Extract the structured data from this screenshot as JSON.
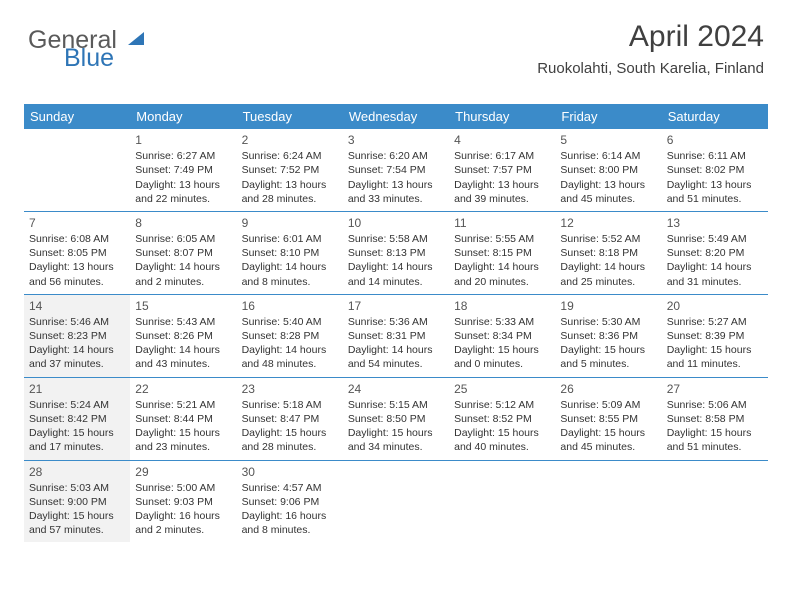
{
  "logo": {
    "part1": "General",
    "part2": "Blue"
  },
  "title": "April 2024",
  "location": "Ruokolahti, South Karelia, Finland",
  "colors": {
    "header_bg": "#3b8bc9",
    "header_text": "#ffffff",
    "rule": "#3b8bc9",
    "logo_gray": "#5a5a5a",
    "logo_blue": "#2e75b6",
    "shaded_bg": "#f2f2f2",
    "body_text": "#333333"
  },
  "font": {
    "family": "Arial",
    "title_size_pt": 30,
    "location_size_pt": 15,
    "header_size_pt": 13,
    "cell_size_pt": 10.5
  },
  "weekdays": [
    "Sunday",
    "Monday",
    "Tuesday",
    "Wednesday",
    "Thursday",
    "Friday",
    "Saturday"
  ],
  "weeks": [
    [
      {
        "empty": true
      },
      {
        "num": "1",
        "sunrise": "Sunrise: 6:27 AM",
        "sunset": "Sunset: 7:49 PM",
        "dl1": "Daylight: 13 hours",
        "dl2": "and 22 minutes."
      },
      {
        "num": "2",
        "sunrise": "Sunrise: 6:24 AM",
        "sunset": "Sunset: 7:52 PM",
        "dl1": "Daylight: 13 hours",
        "dl2": "and 28 minutes."
      },
      {
        "num": "3",
        "sunrise": "Sunrise: 6:20 AM",
        "sunset": "Sunset: 7:54 PM",
        "dl1": "Daylight: 13 hours",
        "dl2": "and 33 minutes."
      },
      {
        "num": "4",
        "sunrise": "Sunrise: 6:17 AM",
        "sunset": "Sunset: 7:57 PM",
        "dl1": "Daylight: 13 hours",
        "dl2": "and 39 minutes."
      },
      {
        "num": "5",
        "sunrise": "Sunrise: 6:14 AM",
        "sunset": "Sunset: 8:00 PM",
        "dl1": "Daylight: 13 hours",
        "dl2": "and 45 minutes."
      },
      {
        "num": "6",
        "sunrise": "Sunrise: 6:11 AM",
        "sunset": "Sunset: 8:02 PM",
        "dl1": "Daylight: 13 hours",
        "dl2": "and 51 minutes."
      }
    ],
    [
      {
        "num": "7",
        "sunrise": "Sunrise: 6:08 AM",
        "sunset": "Sunset: 8:05 PM",
        "dl1": "Daylight: 13 hours",
        "dl2": "and 56 minutes."
      },
      {
        "num": "8",
        "sunrise": "Sunrise: 6:05 AM",
        "sunset": "Sunset: 8:07 PM",
        "dl1": "Daylight: 14 hours",
        "dl2": "and 2 minutes."
      },
      {
        "num": "9",
        "sunrise": "Sunrise: 6:01 AM",
        "sunset": "Sunset: 8:10 PM",
        "dl1": "Daylight: 14 hours",
        "dl2": "and 8 minutes."
      },
      {
        "num": "10",
        "sunrise": "Sunrise: 5:58 AM",
        "sunset": "Sunset: 8:13 PM",
        "dl1": "Daylight: 14 hours",
        "dl2": "and 14 minutes."
      },
      {
        "num": "11",
        "sunrise": "Sunrise: 5:55 AM",
        "sunset": "Sunset: 8:15 PM",
        "dl1": "Daylight: 14 hours",
        "dl2": "and 20 minutes."
      },
      {
        "num": "12",
        "sunrise": "Sunrise: 5:52 AM",
        "sunset": "Sunset: 8:18 PM",
        "dl1": "Daylight: 14 hours",
        "dl2": "and 25 minutes."
      },
      {
        "num": "13",
        "sunrise": "Sunrise: 5:49 AM",
        "sunset": "Sunset: 8:20 PM",
        "dl1": "Daylight: 14 hours",
        "dl2": "and 31 minutes."
      }
    ],
    [
      {
        "num": "14",
        "shaded": true,
        "sunrise": "Sunrise: 5:46 AM",
        "sunset": "Sunset: 8:23 PM",
        "dl1": "Daylight: 14 hours",
        "dl2": "and 37 minutes."
      },
      {
        "num": "15",
        "sunrise": "Sunrise: 5:43 AM",
        "sunset": "Sunset: 8:26 PM",
        "dl1": "Daylight: 14 hours",
        "dl2": "and 43 minutes."
      },
      {
        "num": "16",
        "sunrise": "Sunrise: 5:40 AM",
        "sunset": "Sunset: 8:28 PM",
        "dl1": "Daylight: 14 hours",
        "dl2": "and 48 minutes."
      },
      {
        "num": "17",
        "sunrise": "Sunrise: 5:36 AM",
        "sunset": "Sunset: 8:31 PM",
        "dl1": "Daylight: 14 hours",
        "dl2": "and 54 minutes."
      },
      {
        "num": "18",
        "sunrise": "Sunrise: 5:33 AM",
        "sunset": "Sunset: 8:34 PM",
        "dl1": "Daylight: 15 hours",
        "dl2": "and 0 minutes."
      },
      {
        "num": "19",
        "sunrise": "Sunrise: 5:30 AM",
        "sunset": "Sunset: 8:36 PM",
        "dl1": "Daylight: 15 hours",
        "dl2": "and 5 minutes."
      },
      {
        "num": "20",
        "sunrise": "Sunrise: 5:27 AM",
        "sunset": "Sunset: 8:39 PM",
        "dl1": "Daylight: 15 hours",
        "dl2": "and 11 minutes."
      }
    ],
    [
      {
        "num": "21",
        "shaded": true,
        "sunrise": "Sunrise: 5:24 AM",
        "sunset": "Sunset: 8:42 PM",
        "dl1": "Daylight: 15 hours",
        "dl2": "and 17 minutes."
      },
      {
        "num": "22",
        "sunrise": "Sunrise: 5:21 AM",
        "sunset": "Sunset: 8:44 PM",
        "dl1": "Daylight: 15 hours",
        "dl2": "and 23 minutes."
      },
      {
        "num": "23",
        "sunrise": "Sunrise: 5:18 AM",
        "sunset": "Sunset: 8:47 PM",
        "dl1": "Daylight: 15 hours",
        "dl2": "and 28 minutes."
      },
      {
        "num": "24",
        "sunrise": "Sunrise: 5:15 AM",
        "sunset": "Sunset: 8:50 PM",
        "dl1": "Daylight: 15 hours",
        "dl2": "and 34 minutes."
      },
      {
        "num": "25",
        "sunrise": "Sunrise: 5:12 AM",
        "sunset": "Sunset: 8:52 PM",
        "dl1": "Daylight: 15 hours",
        "dl2": "and 40 minutes."
      },
      {
        "num": "26",
        "sunrise": "Sunrise: 5:09 AM",
        "sunset": "Sunset: 8:55 PM",
        "dl1": "Daylight: 15 hours",
        "dl2": "and 45 minutes."
      },
      {
        "num": "27",
        "sunrise": "Sunrise: 5:06 AM",
        "sunset": "Sunset: 8:58 PM",
        "dl1": "Daylight: 15 hours",
        "dl2": "and 51 minutes."
      }
    ],
    [
      {
        "num": "28",
        "shaded": true,
        "sunrise": "Sunrise: 5:03 AM",
        "sunset": "Sunset: 9:00 PM",
        "dl1": "Daylight: 15 hours",
        "dl2": "and 57 minutes."
      },
      {
        "num": "29",
        "sunrise": "Sunrise: 5:00 AM",
        "sunset": "Sunset: 9:03 PM",
        "dl1": "Daylight: 16 hours",
        "dl2": "and 2 minutes."
      },
      {
        "num": "30",
        "sunrise": "Sunrise: 4:57 AM",
        "sunset": "Sunset: 9:06 PM",
        "dl1": "Daylight: 16 hours",
        "dl2": "and 8 minutes."
      },
      {
        "empty": true
      },
      {
        "empty": true
      },
      {
        "empty": true
      },
      {
        "empty": true
      }
    ]
  ]
}
